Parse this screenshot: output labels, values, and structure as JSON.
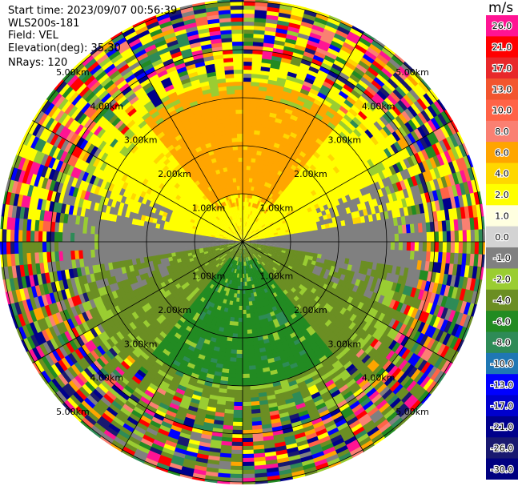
{
  "header": {
    "start_time": "Start time: 2023/09/07 00:56:39",
    "instrument": "WLS200s-181",
    "field": "Field: VEL",
    "elevation": "Elevation(deg): 35.30",
    "nrays": "NRays: 120"
  },
  "chart_data": {
    "type": "heatmap",
    "projection": "polar-ppi",
    "field": "VEL",
    "units": "m/s",
    "nrays": 120,
    "range_rings_km": [
      1,
      2,
      3,
      4,
      5
    ],
    "range_ring_labels": [
      "1.00km",
      "2.00km",
      "3.00km",
      "4.00km",
      "5.00km"
    ],
    "azimuth_spokes_deg": [
      0,
      30,
      60,
      90,
      120,
      150,
      180,
      210,
      240,
      270,
      300,
      330
    ],
    "colorbar": {
      "title": "m/s",
      "ticks": [
        "26.0",
        "21.0",
        "17.0",
        "13.0",
        "10.0",
        "8.0",
        "6.0",
        "4.0",
        "2.0",
        "1.0",
        "0.0",
        "-1.0",
        "-2.0",
        "-4.0",
        "-6.0",
        "-8.0",
        "-10.0",
        "-13.0",
        "-17.0",
        "-21.0",
        "-26.0",
        "-30.0"
      ],
      "colors": [
        "#ff1493",
        "#ff0000",
        "#e8282a",
        "#f2552e",
        "#ff6347",
        "#fa8072",
        "#ffa500",
        "#ffd700",
        "#ffff00",
        "#ffffe0",
        "#d3d3d3",
        "#808080",
        "#9acd32",
        "#6b8e23",
        "#228b22",
        "#2e8b57",
        "#1f77b4",
        "#0000ff",
        "#0000cd",
        "#00008b",
        "#191970",
        "#000080"
      ]
    },
    "pattern_description": {
      "north_sector": "positive velocities (yellow to orange)",
      "south_sector": "negative velocities (greens)",
      "east_west_band": "near-zero velocities (gray)",
      "outer_ranges": "noise"
    }
  }
}
